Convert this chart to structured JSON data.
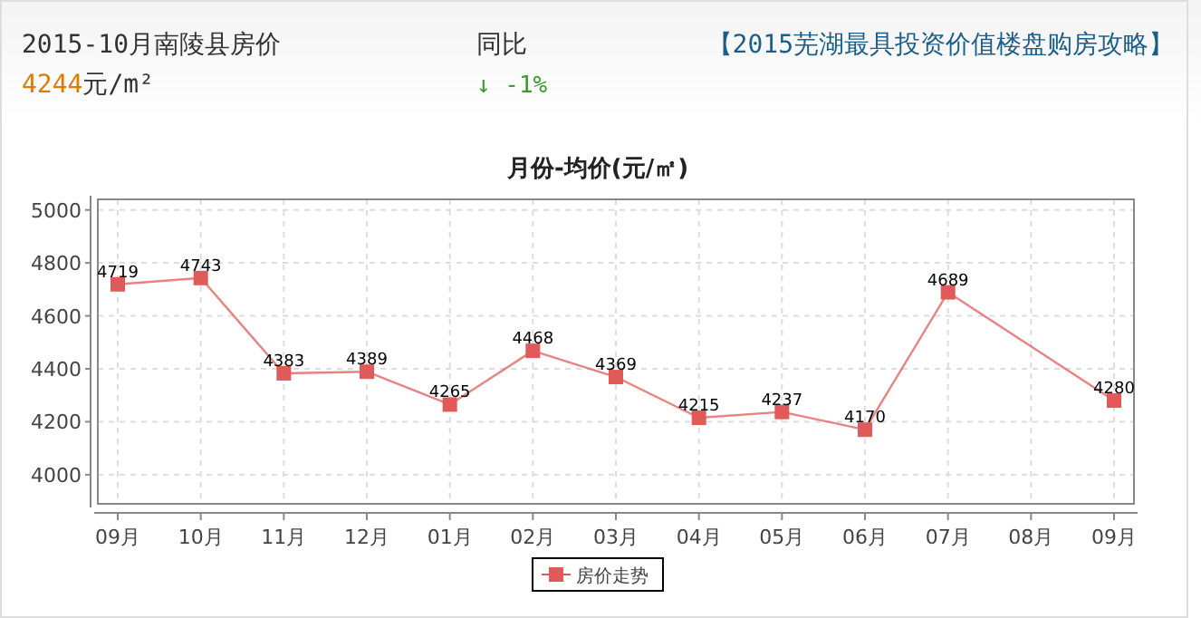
{
  "chart_data": {
    "type": "line",
    "title": "月份-均价(元/㎡)",
    "annotations": [
      "2015-10月南陵县房价",
      "4244元/m²",
      "同比",
      "↓ -1%",
      "【2015芜湖最具投资价值楼盘购房攻略】"
    ],
    "categories": [
      "09月",
      "10月",
      "11月",
      "12月",
      "01月",
      "02月",
      "03月",
      "04月",
      "05月",
      "06月",
      "07月",
      "08月",
      "09月"
    ],
    "series": [
      {
        "name": "房价走势",
        "color": "#e05a5a",
        "values": [
          4719,
          4743,
          4383,
          4389,
          4265,
          4468,
          4369,
          4215,
          4237,
          4170,
          4689,
          null,
          4280
        ]
      }
    ],
    "ylim": [
      3890,
      5040
    ],
    "yticks": [
      4000,
      4200,
      4400,
      4600,
      4800,
      5000
    ],
    "grid": true,
    "legend": "bottom",
    "marker": "square",
    "line_style": "solid",
    "data_labels": true
  }
}
